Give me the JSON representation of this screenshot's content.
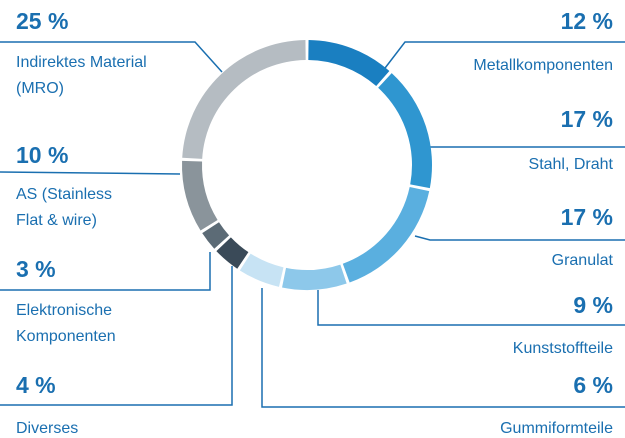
{
  "chart_data": {
    "type": "donut",
    "categories": [
      "Metallkomponenten",
      "Stahl, Draht",
      "Granulat",
      "Kunststoffteile",
      "Gummiformteile",
      "Diverses",
      "Elektronische Komponenten",
      "AS (Stainless Flat & wire)",
      "Indirektes Material (MRO)"
    ],
    "values": [
      12,
      17,
      17,
      9,
      6,
      4,
      3,
      10,
      25
    ],
    "value_labels": [
      "12 %",
      "17 %",
      "17 %",
      "9 %",
      "6 %",
      "4 %",
      "3 %",
      "10 %",
      "25 %"
    ],
    "colors": [
      "#1a7fc1",
      "#2f96d0",
      "#5aafdf",
      "#8dc8ea",
      "#c7e3f4",
      "#3a4a58",
      "#5c6b76",
      "#8a949b",
      "#b5bcc2"
    ]
  }
}
